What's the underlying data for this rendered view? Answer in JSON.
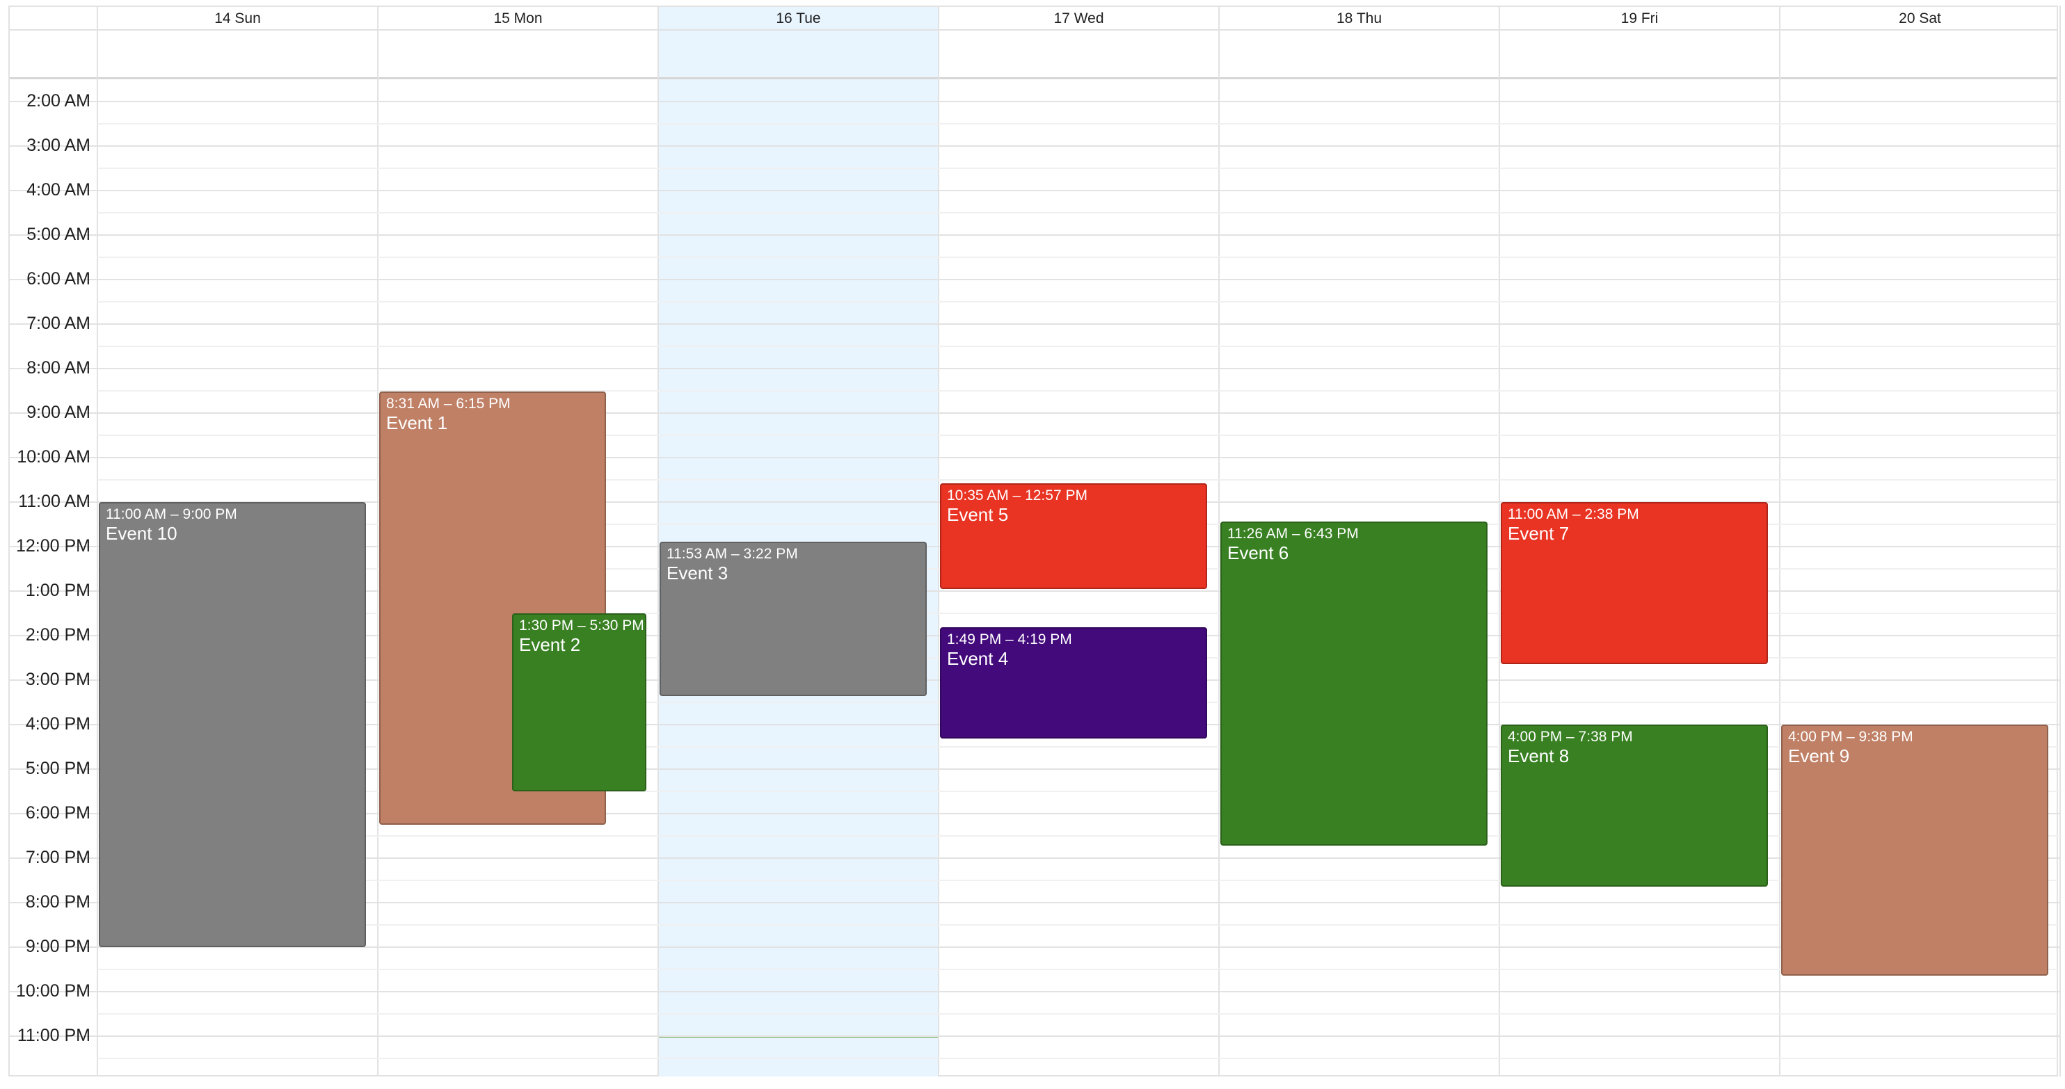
{
  "days": [
    {
      "label": "14 Sun",
      "today": false
    },
    {
      "label": "15 Mon",
      "today": false
    },
    {
      "label": "16 Tue",
      "today": true
    },
    {
      "label": "17 Wed",
      "today": false
    },
    {
      "label": "18 Thu",
      "today": false
    },
    {
      "label": "19 Fri",
      "today": false
    },
    {
      "label": "20 Sat",
      "today": false
    }
  ],
  "time_labels": [
    "2:00 AM",
    "3:00 AM",
    "4:00 AM",
    "5:00 AM",
    "6:00 AM",
    "7:00 AM",
    "8:00 AM",
    "9:00 AM",
    "10:00 AM",
    "11:00 AM",
    "12:00 PM",
    "1:00 PM",
    "2:00 PM",
    "3:00 PM",
    "4:00 PM",
    "5:00 PM",
    "6:00 PM",
    "7:00 PM",
    "8:00 PM",
    "9:00 PM",
    "10:00 PM",
    "11:00 PM"
  ],
  "colors": {
    "gray": "#808080",
    "tan": "#bf8066",
    "green": "#388022",
    "red": "#e93323",
    "purple": "#430a7b",
    "today_bg": "#e8f4fe",
    "now_line": "#6aa84f",
    "grid": "#e2e2e2"
  },
  "now_time_hours": 23.0,
  "events": [
    {
      "title": "Event 10",
      "time": "11:00 AM – 9:00 PM",
      "day": 0,
      "start": 11.0,
      "end": 21.0,
      "color": "gray",
      "lane": 0,
      "lanes": 1
    },
    {
      "title": "Event 1",
      "time": "8:31 AM – 6:15 PM",
      "day": 1,
      "start": 8.5167,
      "end": 18.25,
      "color": "tan",
      "lane": 0,
      "lanes": 1
    },
    {
      "title": "Event 2",
      "time": "1:30 PM – 5:30 PM",
      "day": 1,
      "start": 13.5,
      "end": 17.5,
      "color": "green",
      "lane": 1,
      "lanes": 1
    },
    {
      "title": "Event 3",
      "time": "11:53 AM – 3:22 PM",
      "day": 2,
      "start": 11.8833,
      "end": 15.3667,
      "color": "gray",
      "lane": 0,
      "lanes": 1
    },
    {
      "title": "Event 5",
      "time": "10:35 AM – 12:57 PM",
      "day": 3,
      "start": 10.5833,
      "end": 12.95,
      "color": "red",
      "lane": 0,
      "lanes": 1
    },
    {
      "title": "Event 4",
      "time": "1:49 PM – 4:19 PM",
      "day": 3,
      "start": 13.8167,
      "end": 16.3167,
      "color": "purple",
      "lane": 0,
      "lanes": 1
    },
    {
      "title": "Event 6",
      "time": "11:26 AM – 6:43 PM",
      "day": 4,
      "start": 11.4333,
      "end": 18.7167,
      "color": "green",
      "lane": 0,
      "lanes": 1
    },
    {
      "title": "Event 7",
      "time": "11:00 AM – 2:38 PM",
      "day": 5,
      "start": 11.0,
      "end": 14.6333,
      "color": "red",
      "lane": 0,
      "lanes": 1
    },
    {
      "title": "Event 8",
      "time": "4:00 PM – 7:38 PM",
      "day": 5,
      "start": 16.0,
      "end": 19.6333,
      "color": "green",
      "lane": 0,
      "lanes": 1
    },
    {
      "title": "Event 9",
      "time": "4:00 PM – 9:38 PM",
      "day": 6,
      "start": 16.0,
      "end": 21.6333,
      "color": "tan",
      "lane": 0,
      "lanes": 1
    }
  ]
}
